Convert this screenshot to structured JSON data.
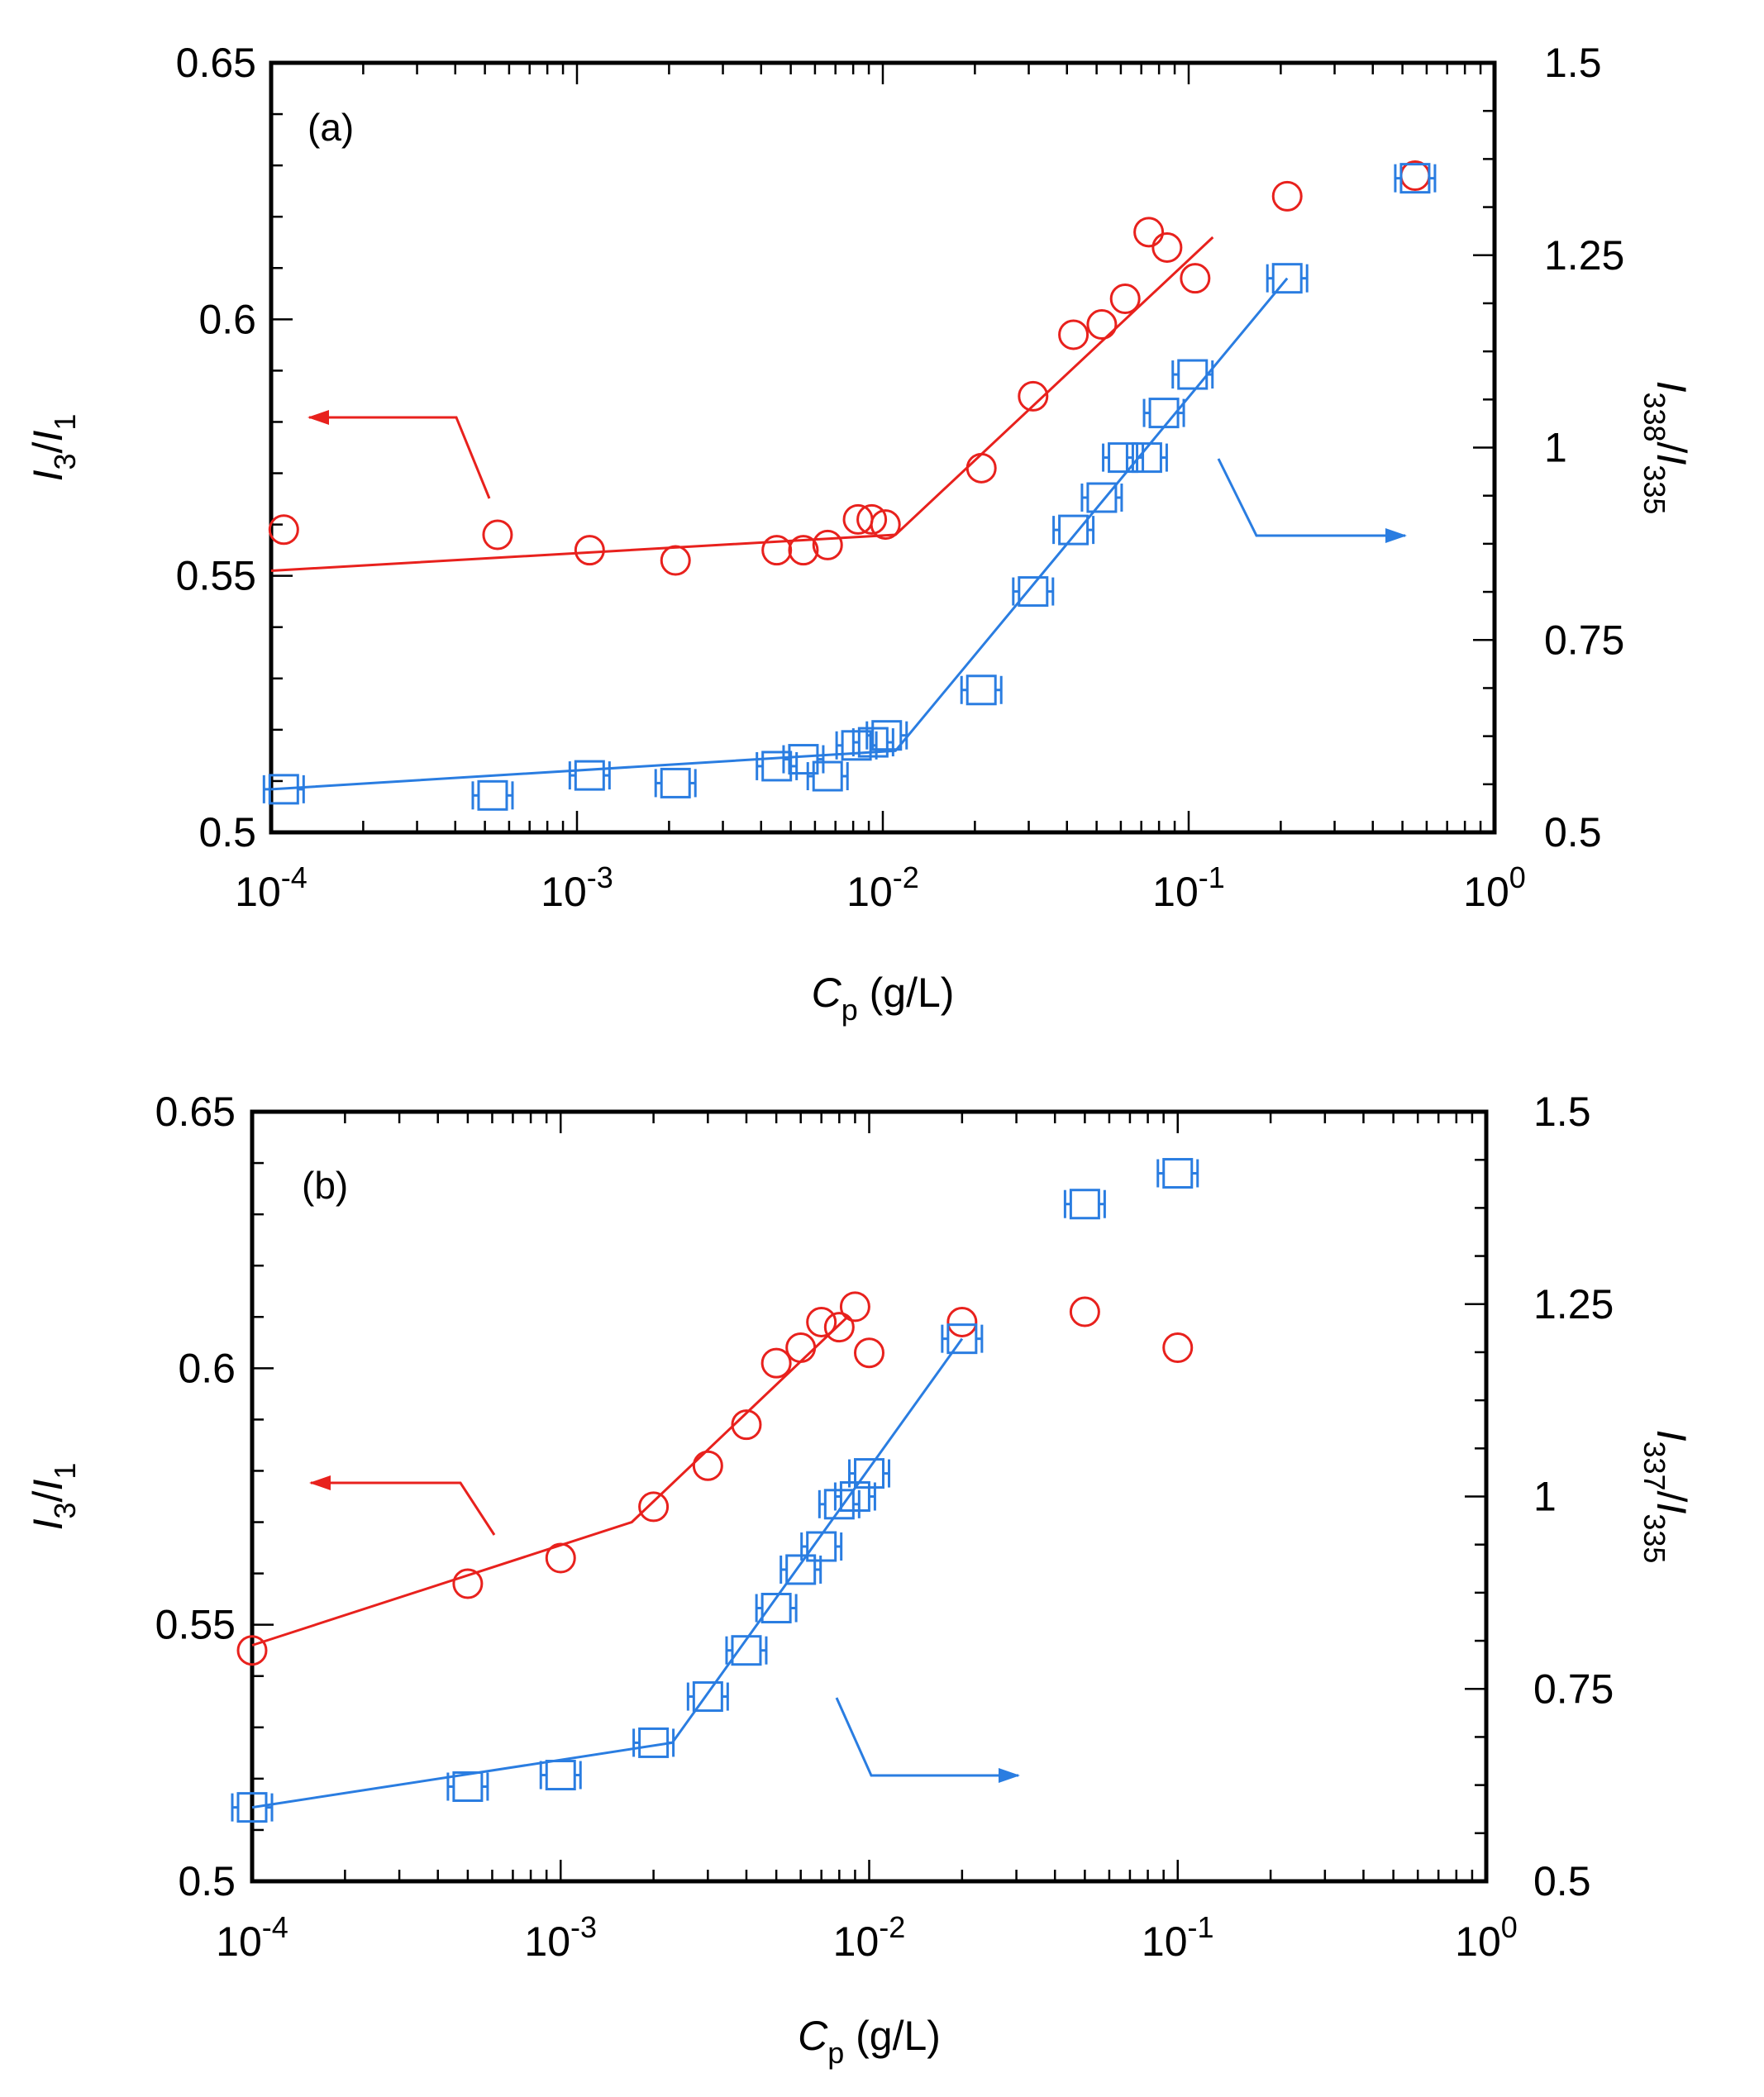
{
  "chart_data": [
    {
      "type": "scatter",
      "panel_label": "(a)",
      "xscale": "log",
      "xlim": [
        0.0001,
        1
      ],
      "x_tick_labels": [
        {
          "base": "10",
          "exp": "-4"
        },
        {
          "base": "10",
          "exp": "-3"
        },
        {
          "base": "10",
          "exp": "-2"
        },
        {
          "base": "10",
          "exp": "-1"
        },
        {
          "base": "10",
          "exp": "0"
        }
      ],
      "xlabel": {
        "main": "C",
        "sub": "p",
        "rest": " (g/L)"
      },
      "ylabel_left": {
        "a": "I",
        "a_sub": "3",
        "slash": "/",
        "b": "I",
        "b_sub": "1"
      },
      "ylabel_right": {
        "a": "I",
        "a_sub": "338",
        "slash": "/",
        "b": "I",
        "b_sub": "335"
      },
      "ylim_left": [
        0.5,
        0.65
      ],
      "ylim_right": [
        0.5,
        1.5
      ],
      "left_ticks": [
        "0.5",
        "0.55",
        "0.6",
        "0.65"
      ],
      "right_ticks": [
        "0.5",
        "0.75",
        "1",
        "1.25",
        "1.5"
      ],
      "series": [
        {
          "name": "I3/I1",
          "axis": "left",
          "marker": "circle",
          "color": "#e8211d",
          "x": [
            0.00011,
            0.00055,
            0.0011,
            0.0021,
            0.0045,
            0.0055,
            0.0066,
            0.0083,
            0.0092,
            0.0102,
            0.021,
            0.031,
            0.042,
            0.052,
            0.062,
            0.074,
            0.085,
            0.105,
            0.21,
            0.55
          ],
          "y": [
            0.559,
            0.558,
            0.555,
            0.553,
            0.555,
            0.555,
            0.556,
            0.561,
            0.561,
            0.56,
            0.571,
            0.585,
            0.597,
            0.599,
            0.604,
            0.617,
            0.614,
            0.608,
            0.624,
            0.628
          ],
          "fit": {
            "x": [
              0.0001,
              0.011,
              0.12
            ],
            "y": [
              0.551,
              0.558,
              0.616
            ]
          }
        },
        {
          "name": "I338/I335",
          "axis": "right",
          "marker": "square",
          "error_bars": true,
          "color": "#2a7de1",
          "x": [
            0.00011,
            0.00053,
            0.0011,
            0.0021,
            0.0045,
            0.0055,
            0.0066,
            0.0082,
            0.0093,
            0.0103,
            0.021,
            0.031,
            0.042,
            0.052,
            0.061,
            0.073,
            0.083,
            0.103,
            0.21,
            0.55
          ],
          "y": [
            0.556,
            0.548,
            0.574,
            0.564,
            0.586,
            0.595,
            0.573,
            0.613,
            0.617,
            0.626,
            0.685,
            0.813,
            0.893,
            0.935,
            0.987,
            0.987,
            1.045,
            1.095,
            1.22,
            1.35
          ],
          "fit": {
            "x": [
              0.0001,
              0.011,
              0.21
            ],
            "y": [
              0.556,
              0.606,
              1.22
            ]
          }
        }
      ],
      "annotations": {
        "left_arrow_color": "#e8211d",
        "right_arrow_color": "#2a7de1"
      }
    },
    {
      "type": "scatter",
      "panel_label": "(b)",
      "xscale": "log",
      "xlim": [
        0.0001,
        1
      ],
      "x_tick_labels": [
        {
          "base": "10",
          "exp": "-4"
        },
        {
          "base": "10",
          "exp": "-3"
        },
        {
          "base": "10",
          "exp": "-2"
        },
        {
          "base": "10",
          "exp": "-1"
        },
        {
          "base": "10",
          "exp": "0"
        }
      ],
      "xlabel": {
        "main": "C",
        "sub": "p",
        "rest": " (g/L)"
      },
      "ylabel_left": {
        "a": "I",
        "a_sub": "3",
        "slash": "/",
        "b": "I",
        "b_sub": "1"
      },
      "ylabel_right": {
        "a": "I",
        "a_sub": "337",
        "slash": "/",
        "b": "I",
        "b_sub": "335"
      },
      "ylim_left": [
        0.5,
        0.65
      ],
      "ylim_right": [
        0.5,
        1.5
      ],
      "left_ticks": [
        "0.5",
        "0.55",
        "0.6",
        "0.65"
      ],
      "right_ticks": [
        "0.5",
        "0.75",
        "1",
        "1.25",
        "1.5"
      ],
      "series": [
        {
          "name": "I3/I1",
          "axis": "left",
          "marker": "circle",
          "color": "#e8211d",
          "x": [
            0.0001,
            0.0005,
            0.001,
            0.002,
            0.003,
            0.004,
            0.005,
            0.006,
            0.007,
            0.008,
            0.009,
            0.01,
            0.02,
            0.05,
            0.1
          ],
          "y": [
            0.545,
            0.558,
            0.563,
            0.573,
            0.581,
            0.589,
            0.601,
            0.604,
            0.609,
            0.608,
            0.612,
            0.603,
            0.609,
            0.611,
            0.604
          ],
          "fit": {
            "x": [
              0.0001,
              0.0017,
              0.0085
            ],
            "y": [
              0.546,
              0.57,
              0.61
            ]
          }
        },
        {
          "name": "I337/I335",
          "axis": "right",
          "marker": "square",
          "error_bars": true,
          "color": "#2a7de1",
          "x": [
            0.0001,
            0.0005,
            0.001,
            0.002,
            0.003,
            0.004,
            0.005,
            0.006,
            0.007,
            0.008,
            0.009,
            0.01,
            0.02,
            0.05,
            0.1
          ],
          "y": [
            0.596,
            0.623,
            0.638,
            0.68,
            0.74,
            0.8,
            0.855,
            0.905,
            0.935,
            0.99,
            1.0,
            1.03,
            1.205,
            1.38,
            1.42
          ],
          "fit": {
            "x": [
              0.0001,
              0.0023,
              0.02
            ],
            "y": [
              0.596,
              0.68,
              1.205
            ]
          }
        }
      ],
      "annotations": {
        "left_arrow_color": "#e8211d",
        "right_arrow_color": "#2a7de1"
      }
    }
  ]
}
